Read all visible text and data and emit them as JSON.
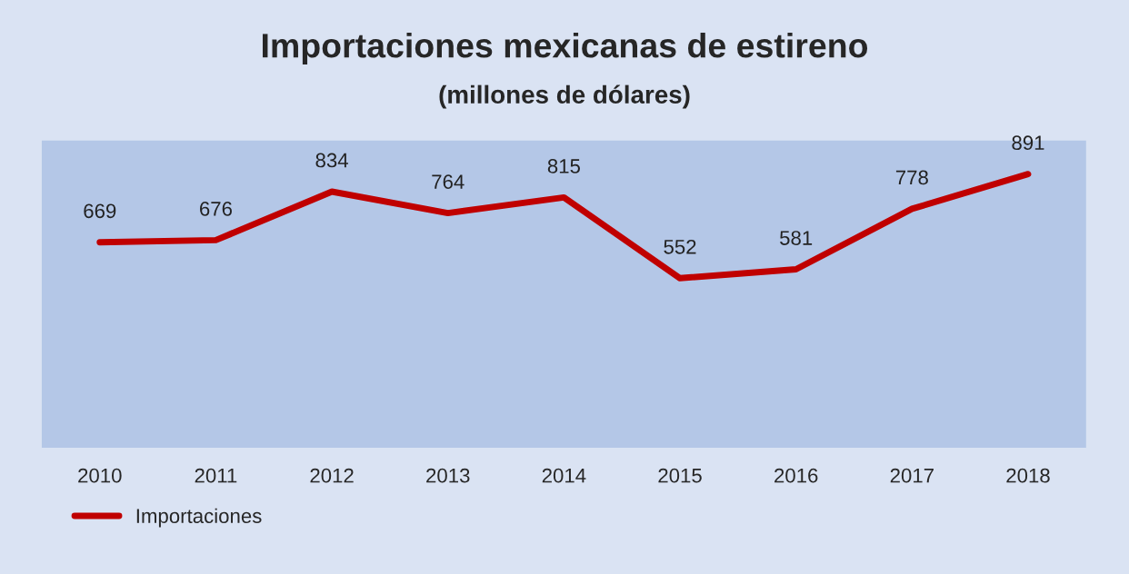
{
  "chart_data": {
    "type": "line",
    "title": "Importaciones mexicanas de estireno",
    "subtitle": "(millones de dólares)",
    "categories": [
      "2010",
      "2011",
      "2012",
      "2013",
      "2014",
      "2015",
      "2016",
      "2017",
      "2018"
    ],
    "series": [
      {
        "name": "Importaciones",
        "color": "#c00000",
        "values": [
          669,
          676,
          834,
          764,
          815,
          552,
          581,
          778,
          891
        ]
      }
    ],
    "ylim": [
      0,
      1000
    ],
    "tick_labels": "x",
    "data_labels": true,
    "legend": "bottom left",
    "grid": false,
    "marker": "none",
    "line_style": "solid"
  }
}
